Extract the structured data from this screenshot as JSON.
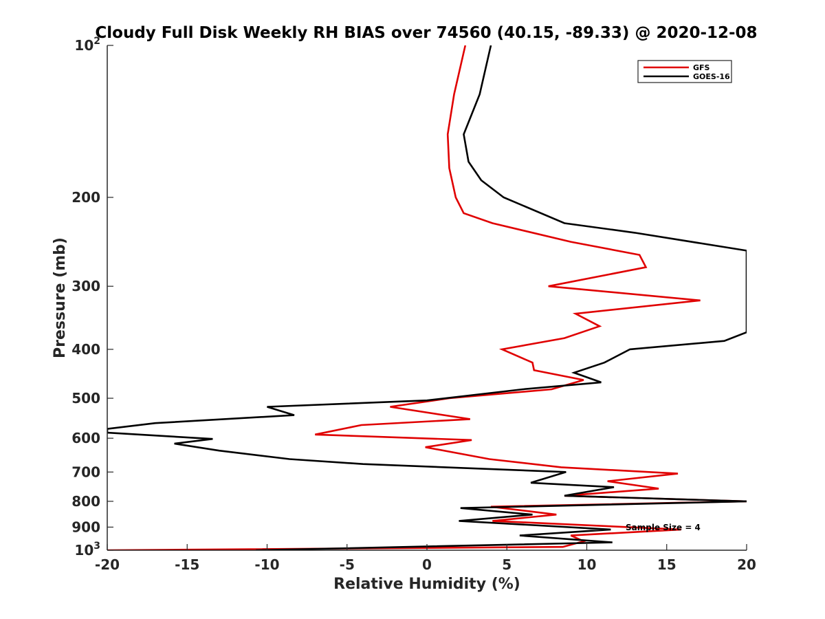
{
  "chart_data": {
    "type": "line",
    "title": "Cloudy Full Disk Weekly RH BIAS over 74560 (40.15, -89.33) @ 2020-12-08",
    "xlabel": "Relative Humidity (%)",
    "ylabel": "Pressure (mb)",
    "xlim": [
      -20,
      20
    ],
    "ylim": [
      100,
      1000
    ],
    "yscale": "log",
    "y_reversed": true,
    "grid": false,
    "legend_position": "top-right",
    "x_ticks": [
      -20,
      -15,
      -10,
      -5,
      0,
      5,
      10,
      15,
      20
    ],
    "x_tick_labels": [
      "-20",
      "-15",
      "-10",
      "-5",
      "0",
      "5",
      "10",
      "15",
      "20"
    ],
    "y_ticks": [
      100,
      200,
      300,
      400,
      500,
      600,
      700,
      800,
      900,
      1000
    ],
    "y_tick_labels": [
      {
        "base": "10",
        "exp": "2"
      },
      {
        "base": "200",
        "exp": ""
      },
      {
        "base": "300",
        "exp": ""
      },
      {
        "base": "400",
        "exp": ""
      },
      {
        "base": "500",
        "exp": ""
      },
      {
        "base": "600",
        "exp": ""
      },
      {
        "base": "700",
        "exp": ""
      },
      {
        "base": "800",
        "exp": ""
      },
      {
        "base": "900",
        "exp": ""
      },
      {
        "base": "10",
        "exp": "3"
      }
    ],
    "annotation": "Sample Size = 4",
    "series": [
      {
        "name": "GFS",
        "color": "#e00000",
        "points": [
          {
            "x": 2.4,
            "p": 100
          },
          {
            "x": 1.7,
            "p": 125
          },
          {
            "x": 1.3,
            "p": 150
          },
          {
            "x": 1.4,
            "p": 175
          },
          {
            "x": 1.8,
            "p": 200
          },
          {
            "x": 2.3,
            "p": 215
          },
          {
            "x": 4.1,
            "p": 225
          },
          {
            "x": 9.0,
            "p": 245
          },
          {
            "x": 13.3,
            "p": 260
          },
          {
            "x": 13.7,
            "p": 275
          },
          {
            "x": 7.6,
            "p": 300
          },
          {
            "x": 17.1,
            "p": 320
          },
          {
            "x": 9.3,
            "p": 340
          },
          {
            "x": 10.8,
            "p": 360
          },
          {
            "x": 8.6,
            "p": 380
          },
          {
            "x": 4.7,
            "p": 400
          },
          {
            "x": 6.6,
            "p": 425
          },
          {
            "x": 6.7,
            "p": 440
          },
          {
            "x": 9.8,
            "p": 460
          },
          {
            "x": 7.8,
            "p": 480
          },
          {
            "x": 1.4,
            "p": 500
          },
          {
            "x": -2.3,
            "p": 520
          },
          {
            "x": 2.7,
            "p": 550
          },
          {
            "x": -4.1,
            "p": 565
          },
          {
            "x": -7.0,
            "p": 590
          },
          {
            "x": 2.8,
            "p": 605
          },
          {
            "x": -0.1,
            "p": 625
          },
          {
            "x": 3.9,
            "p": 660
          },
          {
            "x": 8.4,
            "p": 685
          },
          {
            "x": 15.7,
            "p": 705
          },
          {
            "x": 11.3,
            "p": 730
          },
          {
            "x": 14.5,
            "p": 755
          },
          {
            "x": 8.6,
            "p": 780
          },
          {
            "x": 20.0,
            "p": 800
          },
          {
            "x": 4.0,
            "p": 820
          },
          {
            "x": 8.1,
            "p": 850
          },
          {
            "x": 4.1,
            "p": 875
          },
          {
            "x": 15.9,
            "p": 910
          },
          {
            "x": 9.0,
            "p": 935
          },
          {
            "x": 9.8,
            "p": 960
          },
          {
            "x": 8.5,
            "p": 985
          },
          {
            "x": -20.0,
            "p": 1000
          }
        ]
      },
      {
        "name": "GOES-16",
        "color": "#000000",
        "points": [
          {
            "x": 4.0,
            "p": 100
          },
          {
            "x": 3.3,
            "p": 125
          },
          {
            "x": 2.3,
            "p": 150
          },
          {
            "x": 2.6,
            "p": 170
          },
          {
            "x": 3.4,
            "p": 185
          },
          {
            "x": 4.8,
            "p": 200
          },
          {
            "x": 8.6,
            "p": 225
          },
          {
            "x": 13.0,
            "p": 235
          },
          {
            "x": 20.0,
            "p": 255
          },
          {
            "x": 20.0,
            "p": 370
          },
          {
            "x": 18.6,
            "p": 385
          },
          {
            "x": 12.7,
            "p": 400
          },
          {
            "x": 11.1,
            "p": 425
          },
          {
            "x": 9.2,
            "p": 445
          },
          {
            "x": 10.9,
            "p": 465
          },
          {
            "x": 6.0,
            "p": 480
          },
          {
            "x": 0.0,
            "p": 505
          },
          {
            "x": -10.0,
            "p": 520
          },
          {
            "x": -8.3,
            "p": 540
          },
          {
            "x": -17.0,
            "p": 560
          },
          {
            "x": -20.0,
            "p": 575
          },
          {
            "x": -20.0,
            "p": 585
          },
          {
            "x": -13.4,
            "p": 602
          },
          {
            "x": -15.8,
            "p": 615
          },
          {
            "x": -13.0,
            "p": 635
          },
          {
            "x": -8.6,
            "p": 660
          },
          {
            "x": -4.0,
            "p": 675
          },
          {
            "x": 8.7,
            "p": 700
          },
          {
            "x": 6.5,
            "p": 735
          },
          {
            "x": 11.7,
            "p": 750
          },
          {
            "x": 8.6,
            "p": 780
          },
          {
            "x": 20.0,
            "p": 800
          },
          {
            "x": 2.1,
            "p": 825
          },
          {
            "x": 6.6,
            "p": 850
          },
          {
            "x": 2.0,
            "p": 875
          },
          {
            "x": 11.5,
            "p": 910
          },
          {
            "x": 5.8,
            "p": 935
          },
          {
            "x": 11.6,
            "p": 965
          },
          {
            "x": -10.7,
            "p": 1000
          }
        ]
      }
    ]
  }
}
